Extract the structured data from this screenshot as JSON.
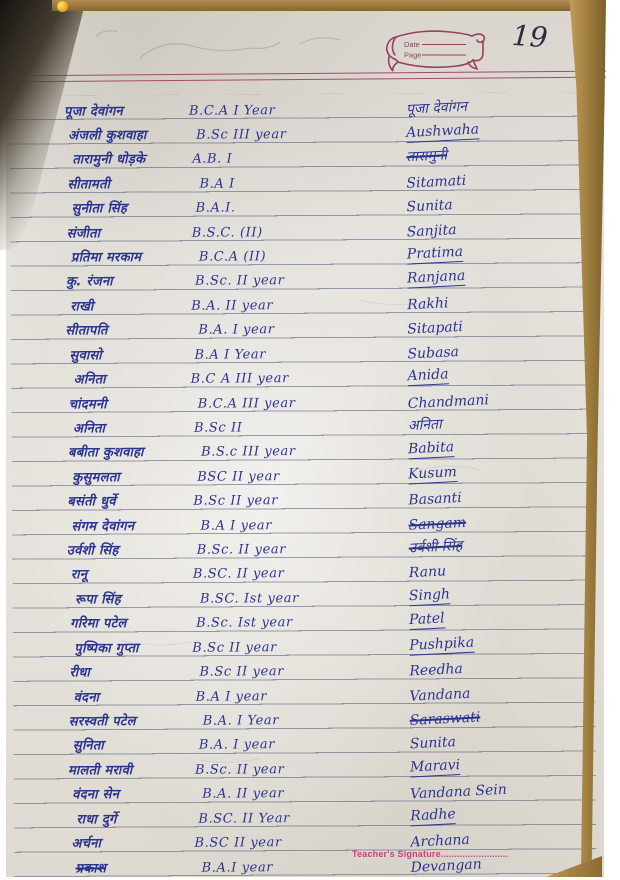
{
  "page": {
    "number": "19",
    "stamp": {
      "date_label": "Date",
      "page_label": "Page"
    },
    "footer": {
      "teachers_signature_label": "Teacher's Signature........................."
    }
  },
  "colors": {
    "ink_blue": "#2b3590",
    "rule_line": "#585e7c",
    "header_line": "#a34a6e",
    "stamp_maroon": "#97405f",
    "footer_pink": "#c2447e",
    "cover_tan": "#9a7a3c",
    "paper": "#e7e4dd"
  },
  "table": {
    "rows": [
      {
        "name": "पूजा देवांगन",
        "course": "B.C.A I Year",
        "signature": "पूजा देवांगन",
        "sig_underline": false,
        "sig_strike": false,
        "name_strike": false
      },
      {
        "name": "अंजली कुशवाहा",
        "course": "B.Sc III year",
        "signature": "Aushwaha",
        "sig_underline": true,
        "sig_strike": false,
        "name_strike": false
      },
      {
        "name": "तारामुनी धोड़के",
        "course": "A.B. I",
        "signature": "तारामुनी",
        "sig_underline": false,
        "sig_strike": true,
        "name_strike": false
      },
      {
        "name": "सीतामती",
        "course": "B.A I",
        "signature": "Sitamati",
        "sig_underline": false,
        "sig_strike": false,
        "name_strike": false
      },
      {
        "name": "सुनीता सिंह",
        "course": "B.A.I.",
        "signature": "Sunita",
        "sig_underline": false,
        "sig_strike": false,
        "name_strike": false
      },
      {
        "name": "संजीता",
        "course": "B.S.C. (II)",
        "signature": "Sanjita",
        "sig_underline": false,
        "sig_strike": false,
        "name_strike": false
      },
      {
        "name": "प्रतिमा मरकाम",
        "course": "B.C.A (II)",
        "signature": "Pratima",
        "sig_underline": true,
        "sig_strike": false,
        "name_strike": false
      },
      {
        "name": "कु. रंजना",
        "course": "B.Sc. II year",
        "signature": "Ranjana",
        "sig_underline": true,
        "sig_strike": false,
        "name_strike": false
      },
      {
        "name": "राखी",
        "course": "B.A. II year",
        "signature": "Rakhi",
        "sig_underline": false,
        "sig_strike": false,
        "name_strike": false
      },
      {
        "name": "सीतापति",
        "course": "B.A. I year",
        "signature": "Sitapati",
        "sig_underline": false,
        "sig_strike": false,
        "name_strike": false
      },
      {
        "name": "सुवासो",
        "course": "B.A I Year",
        "signature": "Subasa",
        "sig_underline": false,
        "sig_strike": false,
        "name_strike": false
      },
      {
        "name": "अनिता",
        "course": "B.C A III year",
        "signature": "Anida",
        "sig_underline": true,
        "sig_strike": false,
        "name_strike": false
      },
      {
        "name": "चांदमनी",
        "course": "B.C.A III year",
        "signature": "Chandmani",
        "sig_underline": false,
        "sig_strike": false,
        "name_strike": false
      },
      {
        "name": "अनिता",
        "course": "B.Sc II",
        "signature": "अनिता",
        "sig_underline": false,
        "sig_strike": false,
        "name_strike": false
      },
      {
        "name": "बबीता कुशवाहा",
        "course": "B.S.c III year",
        "signature": "Babita",
        "sig_underline": true,
        "sig_strike": false,
        "name_strike": false
      },
      {
        "name": "कुसुमलता",
        "course": "BSC II year",
        "signature": "Kusum",
        "sig_underline": true,
        "sig_strike": false,
        "name_strike": false
      },
      {
        "name": "बसंती धुर्वे",
        "course": "B.Sc II year",
        "signature": "Basanti",
        "sig_underline": false,
        "sig_strike": false,
        "name_strike": false
      },
      {
        "name": "संगम देवांगन",
        "course": "B.A I year",
        "signature": "Sangam",
        "sig_underline": false,
        "sig_strike": true,
        "name_strike": false
      },
      {
        "name": "उर्वशी सिंह",
        "course": "B.Sc. II year",
        "signature": "उर्वशी सिंह",
        "sig_underline": false,
        "sig_strike": true,
        "name_strike": false
      },
      {
        "name": "रानू",
        "course": "B.SC. II year",
        "signature": "Ranu",
        "sig_underline": false,
        "sig_strike": false,
        "name_strike": false
      },
      {
        "name": "रूपा सिंह",
        "course": "B.SC. Ist year",
        "signature": "Singh",
        "sig_underline": true,
        "sig_strike": false,
        "name_strike": false
      },
      {
        "name": "गरिमा पटेल",
        "course": "B.Sc. Ist year",
        "signature": "Patel",
        "sig_underline": true,
        "sig_strike": false,
        "name_strike": false
      },
      {
        "name": "पुष्पिका गुप्ता",
        "course": "B.Sc II year",
        "signature": "Pushpika",
        "sig_underline": true,
        "sig_strike": false,
        "name_strike": false
      },
      {
        "name": "रीधा",
        "course": "B.Sc II year",
        "signature": "Reedha",
        "sig_underline": false,
        "sig_strike": false,
        "name_strike": false
      },
      {
        "name": "वंदना",
        "course": "B.A I year",
        "signature": "Vandana",
        "sig_underline": false,
        "sig_strike": false,
        "name_strike": false
      },
      {
        "name": "सरस्वती पटेल",
        "course": "B.A. I Year",
        "signature": "Saraswati",
        "sig_underline": false,
        "sig_strike": true,
        "name_strike": false
      },
      {
        "name": "सुनिता",
        "course": "B.A. I year",
        "signature": "Sunita",
        "sig_underline": false,
        "sig_strike": false,
        "name_strike": false
      },
      {
        "name": "मालती मरावी",
        "course": "B.Sc. II year",
        "signature": "Maravi",
        "sig_underline": true,
        "sig_strike": false,
        "name_strike": false
      },
      {
        "name": "वंदना सेन",
        "course": "B.A. II year",
        "signature": "Vandana Sein",
        "sig_underline": false,
        "sig_strike": false,
        "name_strike": false
      },
      {
        "name": "राधा दुर्गे",
        "course": "B.SC. II Year",
        "signature": "Radhe",
        "sig_underline": true,
        "sig_strike": false,
        "name_strike": false
      },
      {
        "name": "अर्चना",
        "course": "B.SC II year",
        "signature": "Archana",
        "sig_underline": false,
        "sig_strike": false,
        "name_strike": false
      },
      {
        "name": "प्रकाश",
        "course": "B.A.I year",
        "signature": "Devangan",
        "sig_underline": false,
        "sig_strike": false,
        "name_strike": true
      }
    ]
  }
}
